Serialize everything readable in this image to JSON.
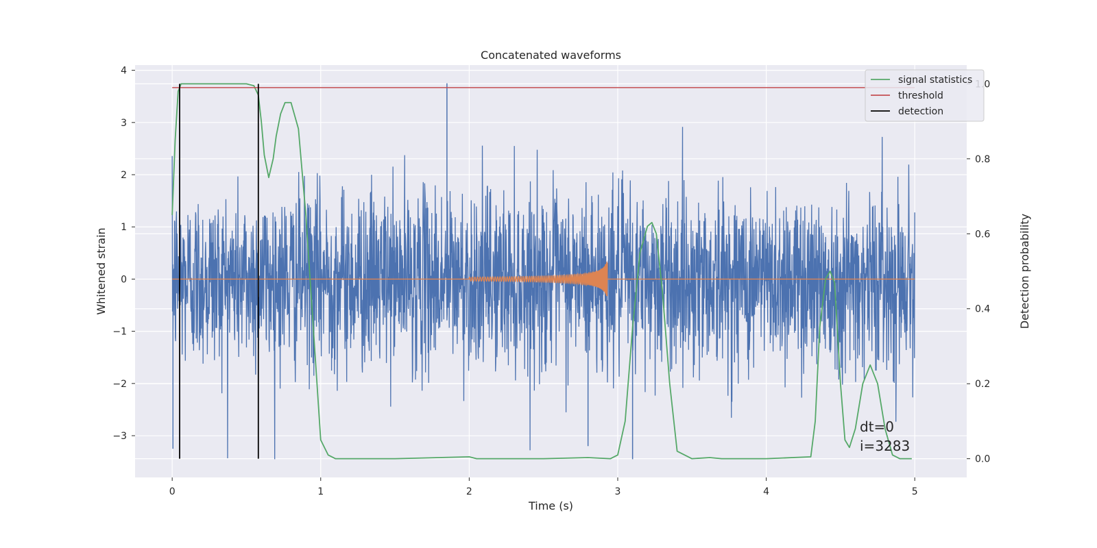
{
  "chart_data": {
    "type": "line",
    "title": "Concatenated waveforms",
    "xlabel": "Time (s)",
    "ylabel_left": "Whitened strain",
    "ylabel_right": "Detection probability",
    "xlim": [
      -0.25,
      5.35
    ],
    "ylim_left": [
      -3.8,
      4.1
    ],
    "ylim_right": [
      -0.05,
      1.05
    ],
    "x_ticks": [
      0,
      1,
      2,
      3,
      4,
      5
    ],
    "y_left_ticks": [
      -3,
      -2,
      -1,
      0,
      1,
      2,
      3,
      4
    ],
    "y_right_ticks": [
      0.0,
      0.2,
      0.4,
      0.6,
      0.8,
      1.0
    ],
    "grid": true,
    "legend_position": "top-right",
    "series": [
      {
        "name": "whitened strain",
        "axis": "left",
        "kind": "noise",
        "x_range": [
          0,
          5
        ],
        "typical_amplitude": 0.85,
        "max": 3.75,
        "min": -3.45,
        "color": "#4c72b0"
      },
      {
        "name": "injected waveform",
        "axis": "left",
        "kind": "chirp",
        "x_range": [
          2.0,
          2.93
        ],
        "peak_amplitude": 0.38,
        "color": "#dd8452"
      },
      {
        "name": "signal statistics",
        "axis": "right",
        "color": "#55a868",
        "x": [
          0.0,
          0.02,
          0.04,
          0.06,
          0.1,
          0.2,
          0.3,
          0.4,
          0.5,
          0.55,
          0.58,
          0.6,
          0.62,
          0.65,
          0.68,
          0.7,
          0.73,
          0.76,
          0.8,
          0.85,
          0.9,
          0.95,
          1.0,
          1.05,
          1.1,
          1.5,
          2.0,
          2.05,
          2.5,
          2.8,
          2.95,
          3.0,
          3.05,
          3.1,
          3.15,
          3.2,
          3.23,
          3.26,
          3.3,
          3.35,
          3.4,
          3.5,
          3.62,
          3.7,
          4.0,
          4.3,
          4.33,
          4.36,
          4.4,
          4.43,
          4.46,
          4.5,
          4.53,
          4.56,
          4.6,
          4.65,
          4.7,
          4.75,
          4.8,
          4.85,
          4.9,
          4.98
        ],
        "y": [
          0.65,
          0.85,
          0.98,
          1.0,
          1.0,
          1.0,
          1.0,
          1.0,
          1.0,
          0.995,
          0.97,
          0.9,
          0.81,
          0.75,
          0.8,
          0.86,
          0.92,
          0.95,
          0.95,
          0.88,
          0.65,
          0.35,
          0.05,
          0.01,
          0.0,
          0.0,
          0.005,
          0.0,
          0.0,
          0.003,
          0.0,
          0.01,
          0.1,
          0.35,
          0.55,
          0.62,
          0.63,
          0.6,
          0.45,
          0.2,
          0.02,
          0.0,
          0.003,
          0.0,
          0.0,
          0.005,
          0.1,
          0.35,
          0.48,
          0.5,
          0.47,
          0.2,
          0.05,
          0.03,
          0.08,
          0.2,
          0.25,
          0.2,
          0.08,
          0.01,
          0.0,
          0.0
        ]
      },
      {
        "name": "threshold",
        "axis": "right",
        "color": "#c44e52",
        "x": [
          0.0,
          5.0
        ],
        "y": [
          0.99,
          0.99
        ]
      },
      {
        "name": "detection",
        "axis": "right",
        "color": "#000000",
        "kind": "vertical-lines",
        "x": [
          0.05,
          0.58
        ],
        "y_range": [
          0.0,
          1.0
        ]
      }
    ],
    "legend": [
      "signal statistics",
      "threshold",
      "detection"
    ],
    "annotations": [
      "dt=0",
      "i=3283"
    ]
  }
}
